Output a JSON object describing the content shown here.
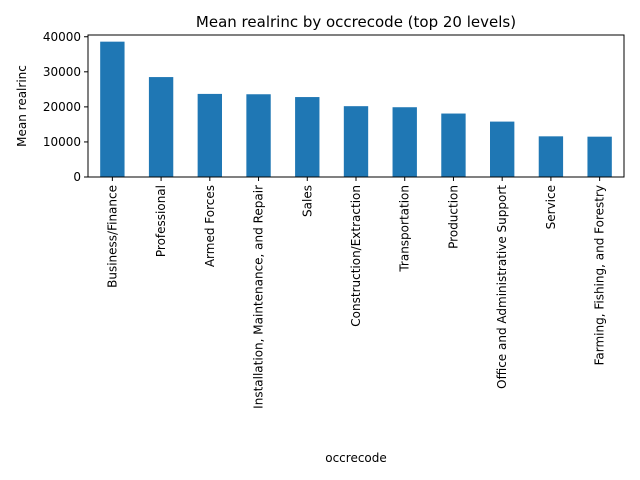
{
  "chart_data": {
    "type": "bar",
    "title": "Mean realrinc by occrecode (top 20 levels)",
    "xlabel": "occrecode",
    "ylabel": "Mean realrinc",
    "categories": [
      "Business/Finance",
      "Professional",
      "Armed Forces",
      "Installation, Maintenance, and Repair",
      "Sales",
      "Construction/Extraction",
      "Transportation",
      "Production",
      "Office and Administrative Support",
      "Service",
      "Farming, Fishing, and Forestry"
    ],
    "values": [
      38600,
      28500,
      23700,
      23600,
      22800,
      20200,
      19900,
      18100,
      15800,
      11600,
      11500
    ],
    "ylim": [
      0,
      40500
    ],
    "yticks": [
      0,
      10000,
      20000,
      30000,
      40000
    ],
    "bar_color": "#1f77b4",
    "grid": false,
    "legend": "none"
  }
}
